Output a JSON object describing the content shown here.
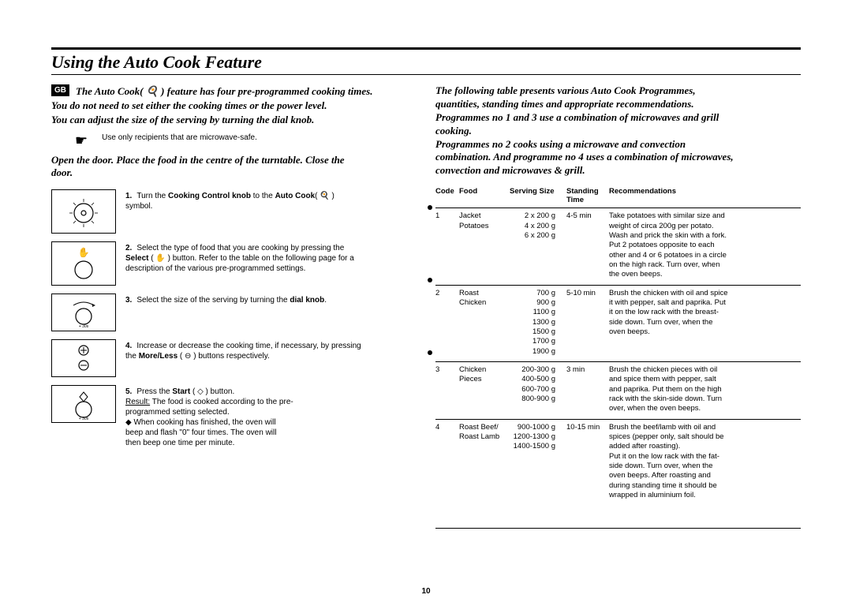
{
  "page_number": "10",
  "title": "Using the Auto Cook Feature",
  "badge": "GB",
  "left": {
    "intro1": "The Auto Cook( 🍳 ) feature has four pre-programmed cooking times.\nYou do not need to set either the cooking times or the power level.\nYou can adjust the size of the serving by turning the dial knob.",
    "safe_note": "Use only recipients that are microwave-safe.",
    "open_door": "Open the door. Place the food in the centre of the turntable. Close the\ndoor.",
    "steps": [
      {
        "n": "1.",
        "html": "Turn the <b>Cooking Control knob</b> to the <b>Auto Cook</b>( 🍳 )\nsymbol."
      },
      {
        "n": "2.",
        "html": "Select the type of food that you are cooking by pressing the\n<b>Select</b> ( <span class='sym'>✋</span> ) button. Refer to the table on the following page for a\ndescription of the various pre-programmed settings."
      },
      {
        "n": "3.",
        "html": "Select the size of the serving by turning the <b>dial knob</b>."
      },
      {
        "n": "4.",
        "html": "Increase or decrease the cooking time, if necessary, by pressing\nthe <b>More/Less</b> ( <span class='sym'>⊖</span> ) buttons respectively."
      },
      {
        "n": "5.",
        "html": "Press the <b>Start</b> ( <span class='sym'>◇</span> ) button.\n<u>Result:</u>    The food is cooked according to the pre-\n                programmed setting selected.\n           ◆    When cooking has finished, the oven will\n                beep and flash \"0\" four times. The oven will\n                then beep one time per minute."
      }
    ]
  },
  "right": {
    "intro": "The following table presents various Auto Cook Programmes,\nquantities, standing times and appropriate recommendations.\nProgrammes no 1 and 3 use a combination of microwaves and grill\ncooking.\nProgrammes no 2 cooks using a microwave and convection\ncombination. And programme no 4 uses a combination of microwaves,\nconvection and microwaves & grill.",
    "headers": [
      "Code",
      "Food",
      "Serving Size",
      "Standing\nTime",
      "Recommendations"
    ],
    "rows": [
      {
        "code": "1",
        "food": "Jacket\nPotatoes",
        "size": "2 x 200 g\n4 x 200 g\n6 x 200 g",
        "stand": "4-5 min",
        "rec": "Take potatoes with similar size and\nweight of circa 200g per potato.\nWash and prick the skin with a fork.\nPut 2 potatoes opposite to each\nother and 4 or 6 potatoes in a circle\non the high rack. Turn over, when\nthe oven beeps."
      },
      {
        "code": "2",
        "food": "Roast\nChicken",
        "size": "700 g\n900 g\n1100 g\n1300 g\n1500 g\n1700 g\n1900 g",
        "stand": "5-10 min",
        "rec": "Brush the chicken with oil and spice\nit with pepper, salt and paprika. Put\nit on the low rack with the breast-\nside down. Turn over, when the\noven beeps."
      },
      {
        "code": "3",
        "food": "Chicken\nPieces",
        "size": "200-300 g\n400-500 g\n600-700 g\n800-900 g",
        "stand": "3 min",
        "rec": "Brush the chicken pieces with oil\nand spice them with pepper, salt\nand paprika. Put them on the high\nrack with the skin-side down. Turn\nover, when the oven beeps."
      },
      {
        "code": "4",
        "food": "Roast Beef/\nRoast Lamb",
        "size": "900-1000 g\n1200-1300 g\n1400-1500 g",
        "stand": "10-15 min",
        "rec": "Brush the beef/lamb with oil and\nspices (pepper only, salt should be\nadded after roasting).\nPut it on the low rack with the fat-\nside down. Turn over, when the\noven beeps. After roasting and\nduring standing time it should be\nwrapped in aluminium foil."
      }
    ]
  },
  "colors": {
    "text": "#000000",
    "bg": "#ffffff"
  }
}
